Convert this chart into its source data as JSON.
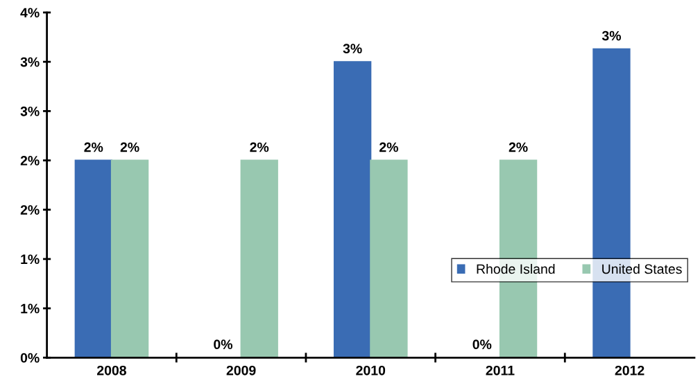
{
  "chart_data": {
    "type": "bar",
    "categories": [
      "2008",
      "2009",
      "2010",
      "2011",
      "2012"
    ],
    "series": [
      {
        "name": "Rhode Island",
        "color": "#3a6cb4",
        "values": [
          2.0,
          0,
          3.0,
          0,
          3.13
        ],
        "value_labels": [
          "2%",
          "0%",
          "3%",
          "0%",
          "3%"
        ]
      },
      {
        "name": "United States",
        "color": "#98c8b0",
        "values": [
          2.0,
          2.0,
          2.0,
          2.0,
          null
        ],
        "value_labels": [
          "2%",
          "2%",
          "2%",
          "2%",
          null
        ]
      }
    ],
    "ylim": [
      0,
      3.5
    ],
    "yticks": [
      {
        "value": 0,
        "label": "0%"
      },
      {
        "value": 0.5,
        "label": "1%"
      },
      {
        "value": 1,
        "label": "1%"
      },
      {
        "value": 1.5,
        "label": "2%"
      },
      {
        "value": 2,
        "label": "2%"
      },
      {
        "value": 2.5,
        "label": "3%"
      },
      {
        "value": 3,
        "label": "3%"
      },
      {
        "value": 3.5,
        "label": "4%"
      }
    ],
    "grid": false,
    "legend": "bottom right"
  }
}
